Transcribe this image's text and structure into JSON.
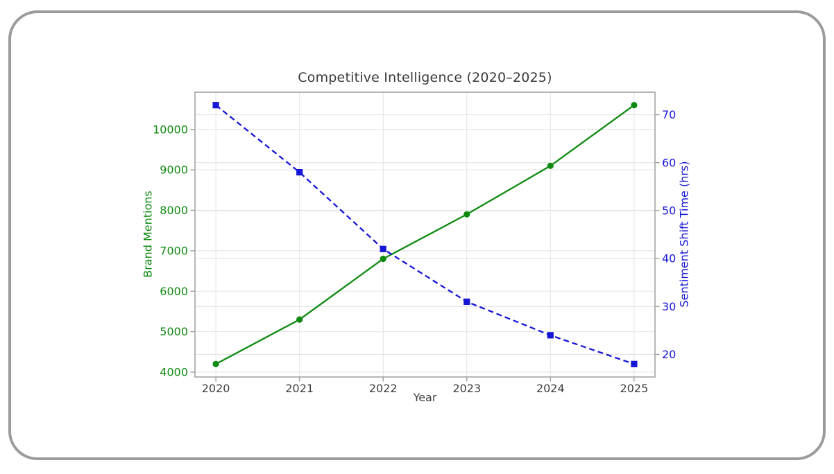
{
  "window": {
    "background": "#ffffff",
    "frame_border_color": "#9b9b9b"
  },
  "chart_data": {
    "type": "line",
    "title": "Competitive Intelligence (2020–2025)",
    "title_color": "#3a3a3a",
    "xlabel": "Year",
    "grid": true,
    "legend": false,
    "grid_color": "#e5e5e5",
    "spine_color": "#9f9f9f",
    "x": [
      2020,
      2021,
      2022,
      2023,
      2024,
      2025
    ],
    "x_axis": {
      "label": "Year",
      "range": [
        2019.75,
        2025.25
      ],
      "tick_labels": [
        "2020",
        "2021",
        "2022",
        "2023",
        "2024",
        "2025"
      ],
      "tick_color": "#3d3d3d"
    },
    "left_axis": {
      "label": "Brand Mentions",
      "color": "#0e8a10",
      "ticks": [
        4000,
        5000,
        6000,
        7000,
        8000,
        9000,
        10000
      ],
      "range": [
        3880,
        10920
      ]
    },
    "right_axis": {
      "label": "Sentiment Shift Time (hrs)",
      "color": "#1515d6",
      "ticks": [
        20,
        30,
        40,
        50,
        60,
        70
      ],
      "range": [
        15.3,
        74.7
      ]
    },
    "series": [
      {
        "name": "Brand Mentions",
        "axis": "left",
        "color": "#0e8a10",
        "marker": "circle",
        "line_style": "solid",
        "values": [
          4200,
          5300,
          6800,
          7900,
          9100,
          10600
        ]
      },
      {
        "name": "Sentiment Shift Time (hrs)",
        "axis": "right",
        "color": "#1515d6",
        "marker": "square",
        "line_style": "dashed",
        "values": [
          72,
          58,
          42,
          31,
          24,
          18
        ]
      }
    ]
  }
}
